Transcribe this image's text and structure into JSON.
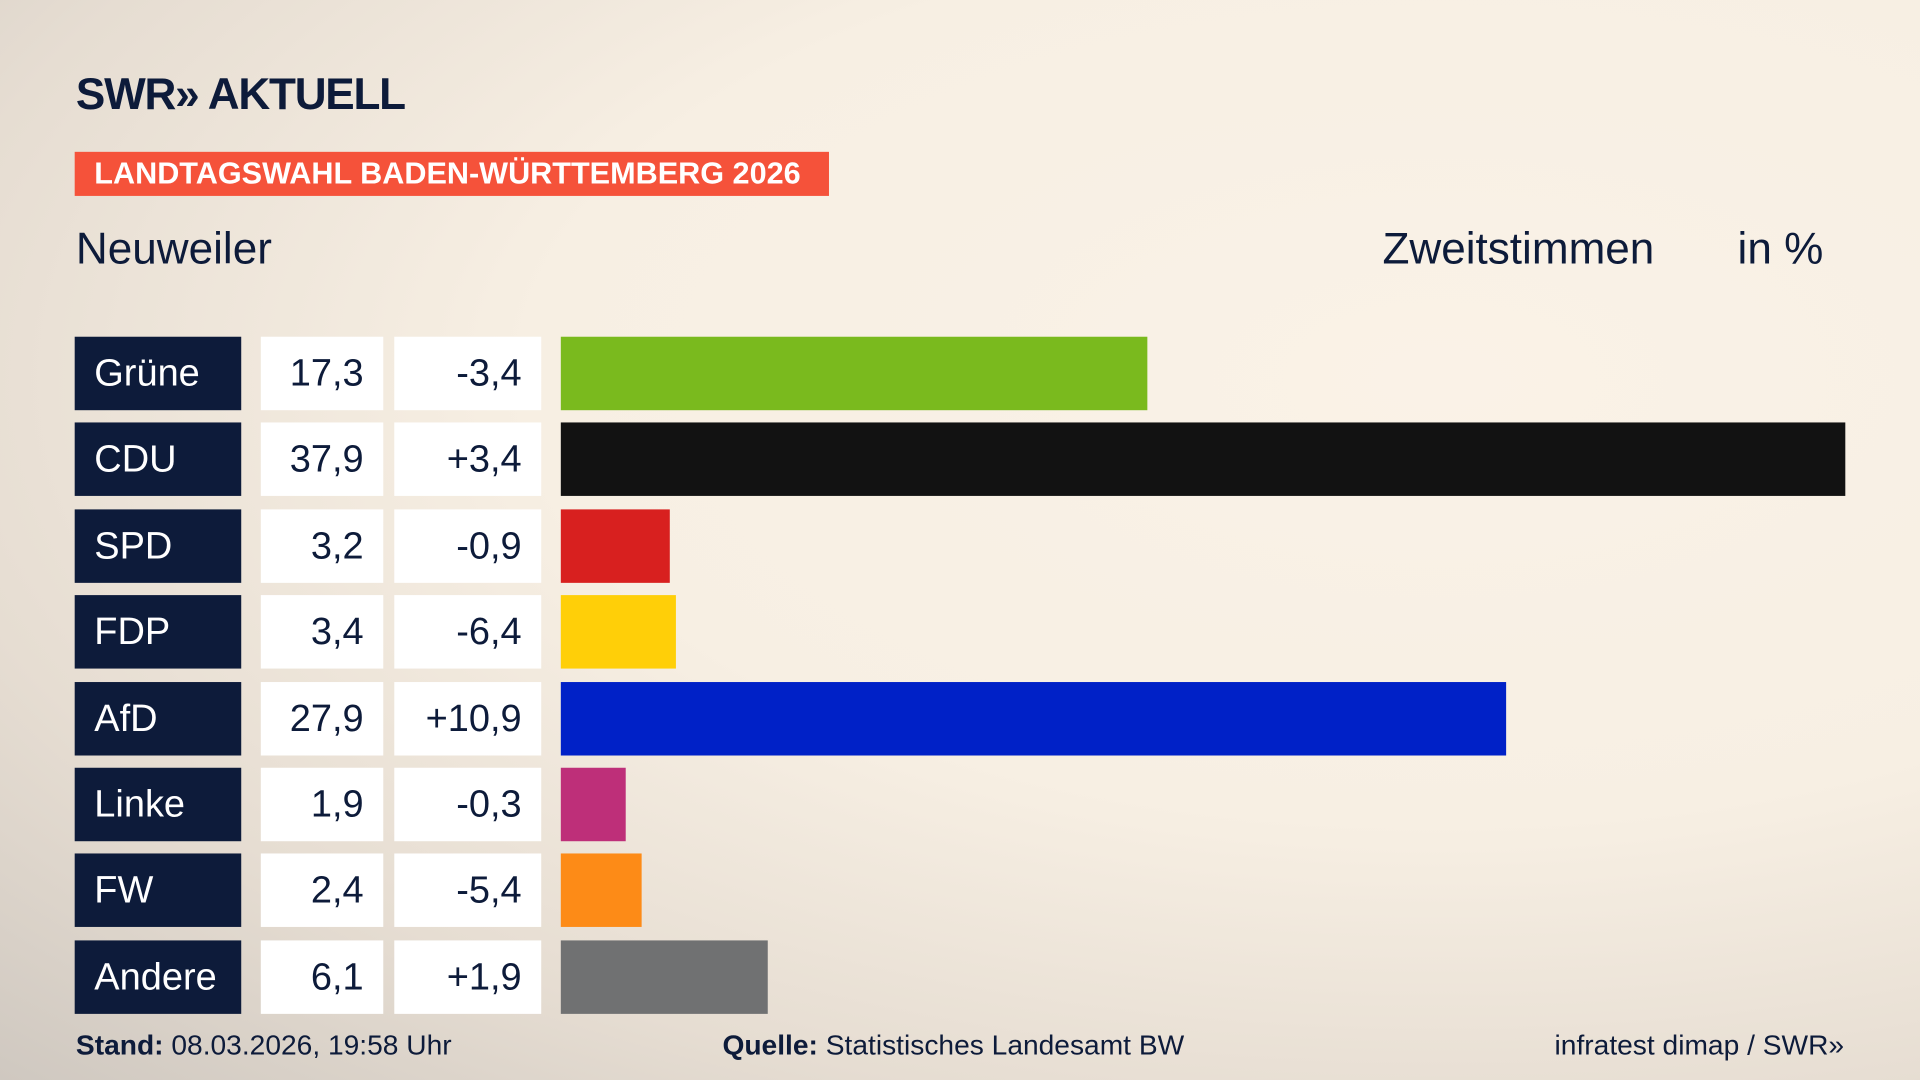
{
  "header": {
    "logo": "SWR» AKTUELL",
    "kicker": "LANDTAGSWAHL BADEN-WÜRTTEMBERG 2026",
    "place": "Neuweiler",
    "vote_type": "Zweitstimmen",
    "unit": "in %"
  },
  "chart_data": {
    "type": "bar",
    "orientation": "horizontal",
    "categories": [
      "Grüne",
      "CDU",
      "SPD",
      "FDP",
      "AfD",
      "Linke",
      "FW",
      "Andere"
    ],
    "values": [
      17.3,
      37.9,
      3.2,
      3.4,
      27.9,
      1.9,
      2.4,
      6.1
    ],
    "value_labels": [
      "17,3",
      "37,9",
      "3,2",
      "3,4",
      "27,9",
      "1,9",
      "2,4",
      "6,1"
    ],
    "changes": [
      "-3,4",
      "+3,4",
      "-0,9",
      "-6,4",
      "+10,9",
      "-0,3",
      "-5,4",
      "+1,9"
    ],
    "colors": [
      "#7aba1e",
      "#121212",
      "#d8201f",
      "#ffcf08",
      "#0021c7",
      "#be2f79",
      "#fd8b17",
      "#707172"
    ],
    "grid": false
  },
  "footer": {
    "stand_label": "Stand:",
    "stand_value": "08.03.2026, 19:58 Uhr",
    "source_label": "Quelle:",
    "source_value": "Statistisches Landesamt BW",
    "credit": "infratest dimap / SWR»"
  }
}
